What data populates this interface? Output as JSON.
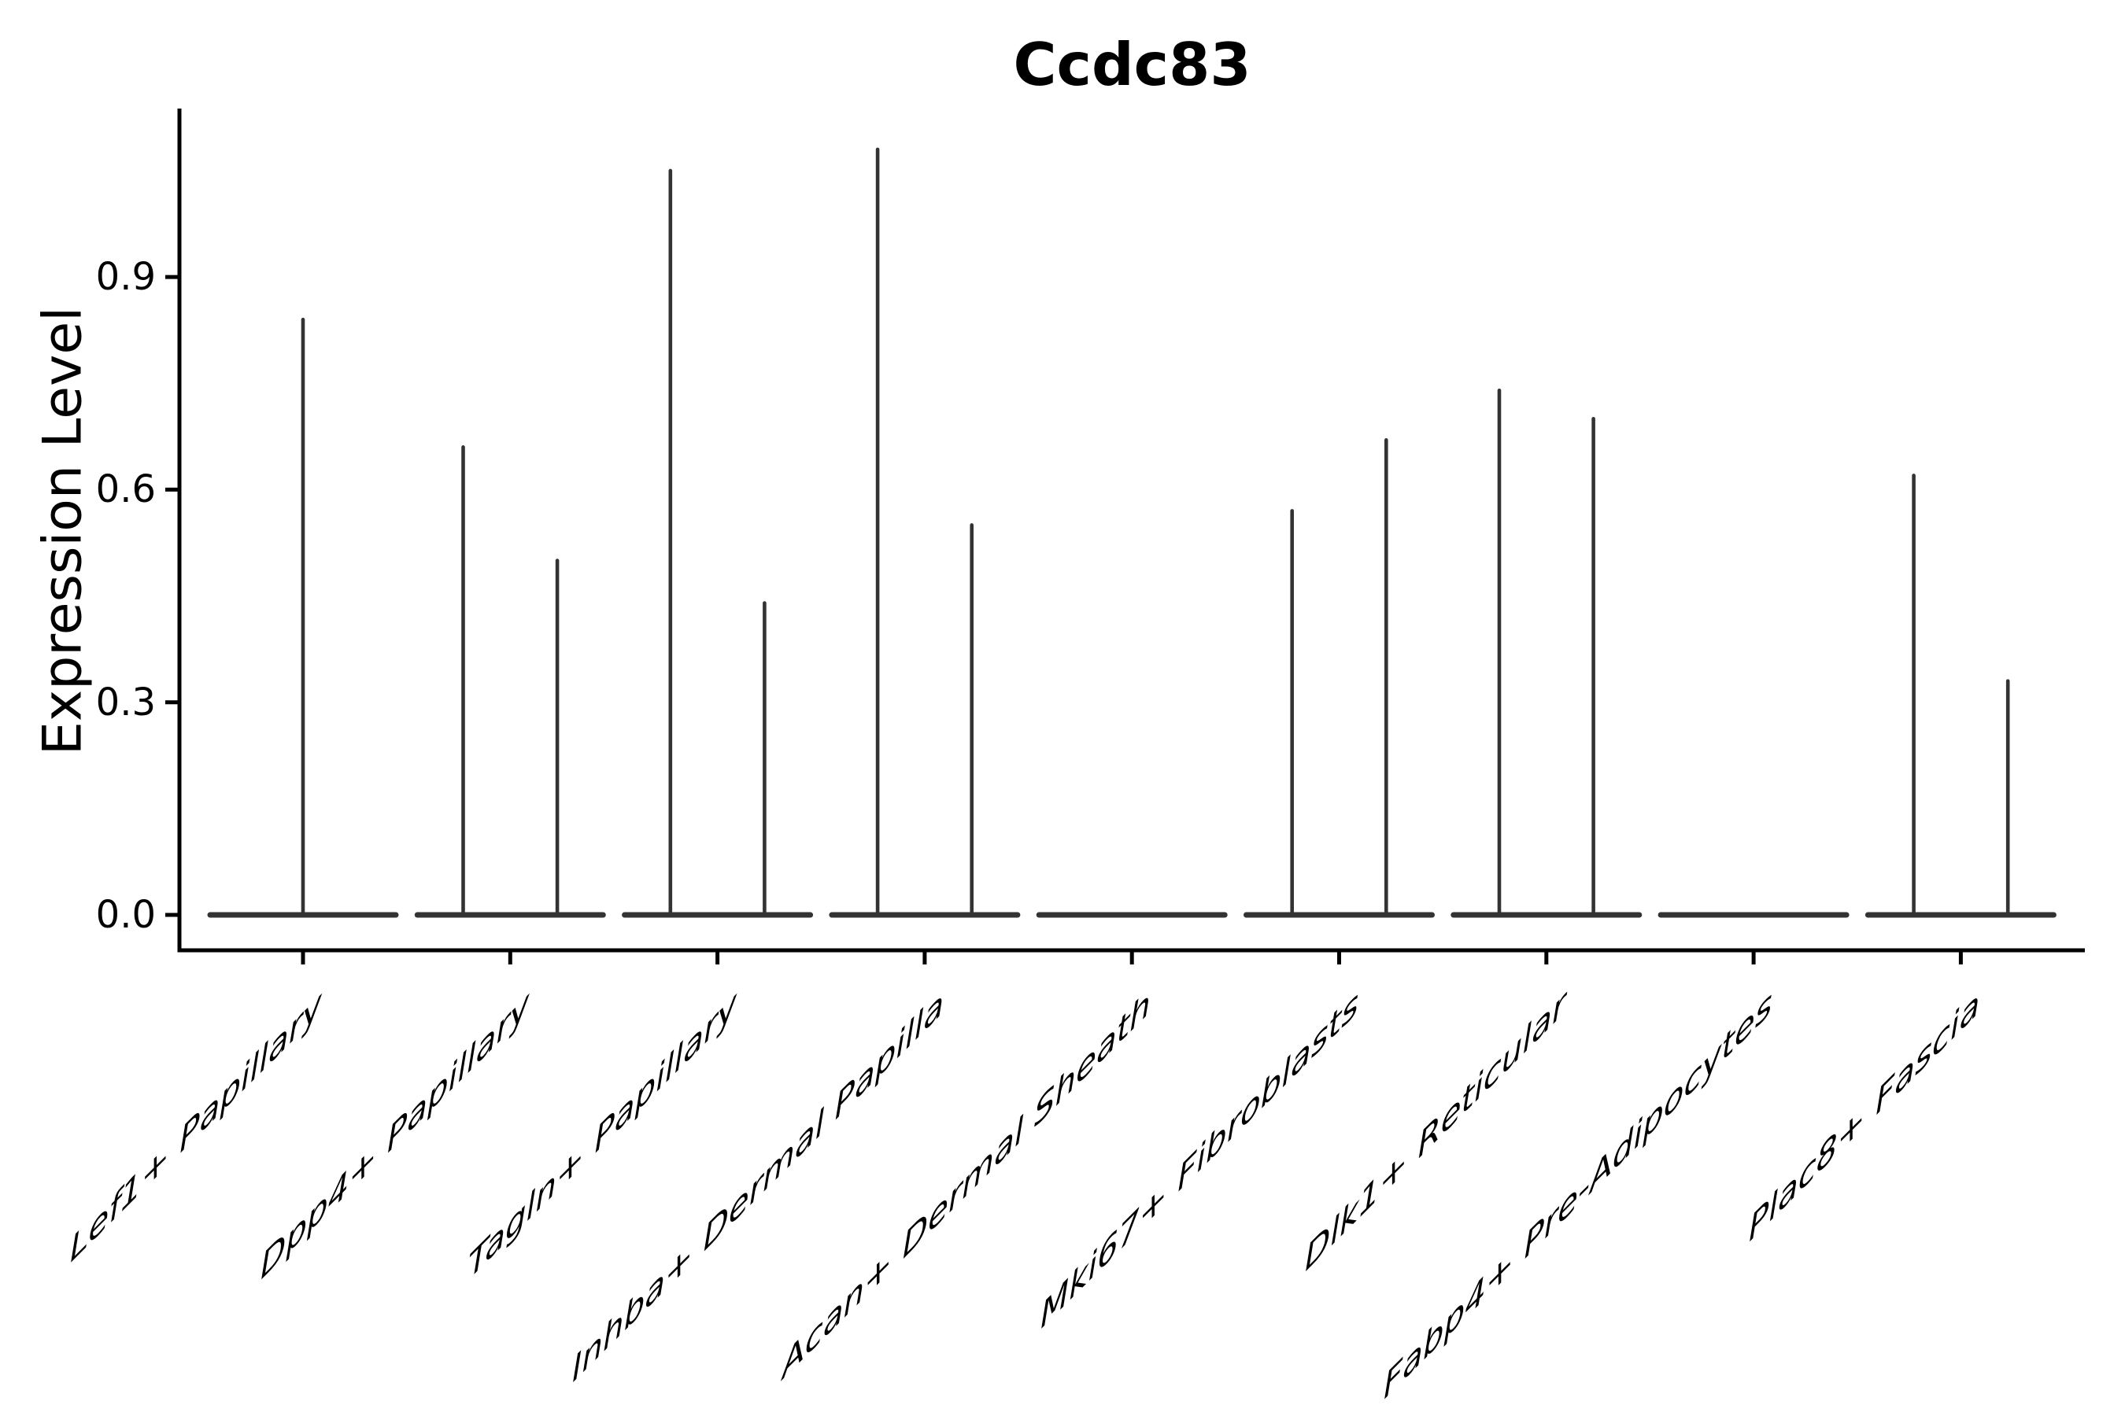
{
  "colors": {
    "violin_outline": "#333333",
    "axis": "#000000",
    "text": "#000000",
    "background": "#ffffff"
  },
  "chart_data": {
    "type": "violin",
    "title": "Ccdc83",
    "ylabel": "Expression Level",
    "xlabel": "",
    "grid": false,
    "legend_position": "none",
    "ylim": [
      -0.05,
      1.135
    ],
    "ytick_labels": [
      "0.0",
      "0.3",
      "0.6",
      "0.9"
    ],
    "ytick_values": [
      0.0,
      0.3,
      0.6,
      0.9
    ],
    "categories": [
      "Lef1+ Papillary",
      "Dpp4+ Papillary",
      "Tagln+ Papillary",
      "Inhba+ Dermal Papilla",
      "Acan+ Dermal Sheath",
      "Mki67+ Fibroblasts",
      "Dlk1+ Reticular",
      "Fabp4+ Pre-Adipocytes",
      "Plac8+ Fascia"
    ],
    "description": "Violin plot of Ccdc83 expression per fibroblast cluster; each violin collapses to a flat base at 0 (most cells non-expressing) with thin spikes reaching the maximum expression value; several clusters show two split violins (left/right spikes).",
    "series": [
      {
        "category": "Lef1+ Papillary",
        "spikes": [
          {
            "group": "center",
            "max": 0.84
          }
        ]
      },
      {
        "category": "Dpp4+ Papillary",
        "spikes": [
          {
            "group": "left",
            "max": 0.66
          },
          {
            "group": "right",
            "max": 0.5
          }
        ]
      },
      {
        "category": "Tagln+ Papillary",
        "spikes": [
          {
            "group": "left",
            "max": 1.05
          },
          {
            "group": "right",
            "max": 0.44
          }
        ]
      },
      {
        "category": "Inhba+ Dermal Papilla",
        "spikes": [
          {
            "group": "left",
            "max": 1.08
          },
          {
            "group": "right",
            "max": 0.55
          }
        ]
      },
      {
        "category": "Acan+ Dermal Sheath",
        "spikes": []
      },
      {
        "category": "Mki67+ Fibroblasts",
        "spikes": [
          {
            "group": "left",
            "max": 0.57
          },
          {
            "group": "right",
            "max": 0.67
          }
        ]
      },
      {
        "category": "Dlk1+ Reticular",
        "spikes": [
          {
            "group": "left",
            "max": 0.74
          },
          {
            "group": "right",
            "max": 0.7
          }
        ]
      },
      {
        "category": "Fabp4+ Pre-Adipocytes",
        "spikes": []
      },
      {
        "category": "Plac8+ Fascia",
        "spikes": [
          {
            "group": "left",
            "max": 0.62
          },
          {
            "group": "right",
            "max": 0.33
          }
        ]
      }
    ]
  }
}
